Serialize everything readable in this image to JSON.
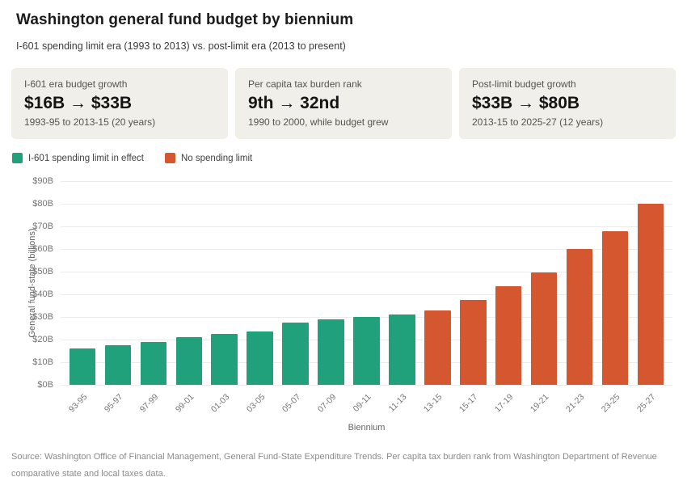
{
  "page": {
    "title": "Washington general fund budget by biennium",
    "subtitle": "I-601 spending limit era (1993 to 2013) vs. post-limit era (2013 to present)",
    "source_note": "Source: Washington Office of Financial Management, General Fund-State Expenditure Trends. Per capita tax burden rank from Washington Department of Revenue comparative state and local taxes data."
  },
  "stat_cards": [
    {
      "label": "I-601 era budget growth",
      "value": "$16B → $33B",
      "caption": "1993-95 to 2013-15 (20 years)"
    },
    {
      "label": "Per capita tax burden rank",
      "value": "9th → 32nd",
      "caption": "1990 to 2000, while budget grew"
    },
    {
      "label": "Post-limit budget growth",
      "value": "$33B → $80B",
      "caption": "2013-15 to 2025-27 (12 years)"
    }
  ],
  "legend": [
    {
      "label": "I-601 spending limit in effect",
      "color": "#20A17B"
    },
    {
      "label": "No spending limit",
      "color": "#D4572F"
    }
  ],
  "chart_data": {
    "type": "bar",
    "title": "",
    "xlabel": "Biennium",
    "ylabel": "General fund-state (billions)",
    "categories": [
      "93-95",
      "95-97",
      "97-99",
      "99-01",
      "01-03",
      "03-05",
      "05-07",
      "07-09",
      "09-11",
      "11-13",
      "13-15",
      "15-17",
      "17-19",
      "19-21",
      "21-23",
      "23-25",
      "25-27"
    ],
    "series": [
      {
        "name": "I-601 spending limit in effect",
        "color": "#20A17B",
        "categories": [
          "93-95",
          "95-97",
          "97-99",
          "99-01",
          "01-03",
          "03-05",
          "05-07",
          "07-09",
          "09-11",
          "11-13"
        ],
        "values": [
          16,
          17.5,
          19,
          21,
          22.5,
          23.5,
          27.5,
          29,
          30,
          31
        ]
      },
      {
        "name": "No spending limit",
        "color": "#D4572F",
        "categories": [
          "13-15",
          "15-17",
          "17-19",
          "19-21",
          "21-23",
          "23-25",
          "25-27"
        ],
        "values": [
          33,
          37.5,
          43.5,
          49.5,
          60,
          68,
          80
        ]
      }
    ],
    "ylim": [
      0,
      90
    ],
    "yticks": [
      {
        "value": 0,
        "label": "$0B"
      },
      {
        "value": 10,
        "label": "$10B"
      },
      {
        "value": 20,
        "label": "$20B"
      },
      {
        "value": 30,
        "label": "$30B"
      },
      {
        "value": 40,
        "label": "$40B"
      },
      {
        "value": 50,
        "label": "$50B"
      },
      {
        "value": 60,
        "label": "$60B"
      },
      {
        "value": 70,
        "label": "$70B"
      },
      {
        "value": 80,
        "label": "$80B"
      },
      {
        "value": 90,
        "label": "$90B"
      }
    ],
    "grid": true,
    "legend_position": "top-left"
  }
}
